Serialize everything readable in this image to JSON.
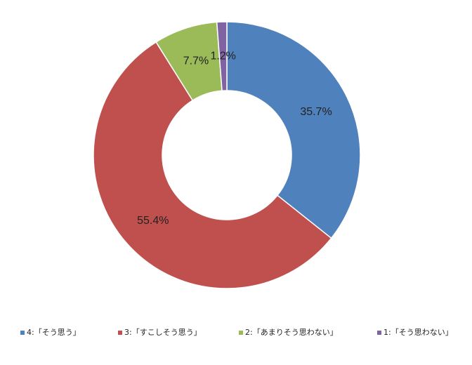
{
  "chart_data": {
    "type": "donut",
    "categories": [
      "4:「そう思う」",
      "3:「すこしそう思う」",
      "2:「あまりそう思わない」",
      "1:「そう思わない」"
    ],
    "values": [
      35.7,
      55.4,
      7.7,
      1.2
    ],
    "value_labels": [
      "35.7%",
      "55.4%",
      "7.7%",
      "1.2%"
    ],
    "colors": [
      "#4f81bd",
      "#c0504d",
      "#9bbb59",
      "#8064a2"
    ],
    "legend": "bottom"
  }
}
